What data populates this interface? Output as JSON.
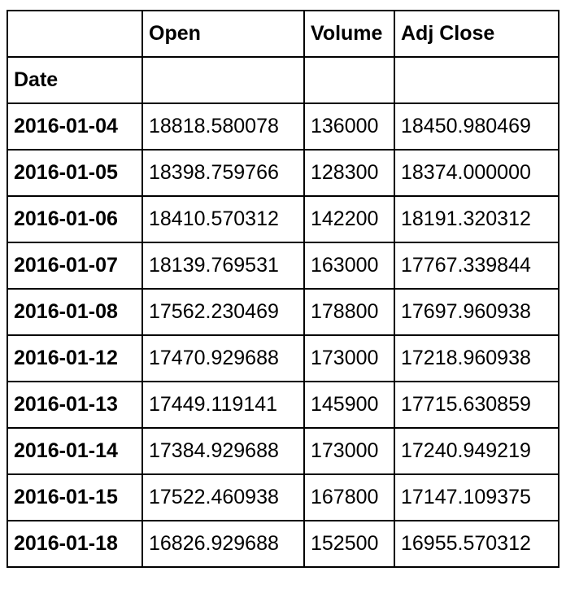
{
  "table": {
    "columns": [
      "",
      "Open",
      "Volume",
      "Adj Close"
    ],
    "index_name": "Date",
    "rows": [
      {
        "date": "2016-01-04",
        "open": "18818.580078",
        "volume": "136000",
        "adj_close": "18450.980469"
      },
      {
        "date": "2016-01-05",
        "open": "18398.759766",
        "volume": "128300",
        "adj_close": "18374.000000"
      },
      {
        "date": "2016-01-06",
        "open": "18410.570312",
        "volume": "142200",
        "adj_close": "18191.320312"
      },
      {
        "date": "2016-01-07",
        "open": "18139.769531",
        "volume": "163000",
        "adj_close": "17767.339844"
      },
      {
        "date": "2016-01-08",
        "open": "17562.230469",
        "volume": "178800",
        "adj_close": "17697.960938"
      },
      {
        "date": "2016-01-12",
        "open": "17470.929688",
        "volume": "173000",
        "adj_close": "17218.960938"
      },
      {
        "date": "2016-01-13",
        "open": "17449.119141",
        "volume": "145900",
        "adj_close": "17715.630859"
      },
      {
        "date": "2016-01-14",
        "open": "17384.929688",
        "volume": "173000",
        "adj_close": "17240.949219"
      },
      {
        "date": "2016-01-15",
        "open": "17522.460938",
        "volume": "167800",
        "adj_close": "17147.109375"
      },
      {
        "date": "2016-01-18",
        "open": "16826.929688",
        "volume": "152500",
        "adj_close": "16955.570312"
      }
    ]
  }
}
